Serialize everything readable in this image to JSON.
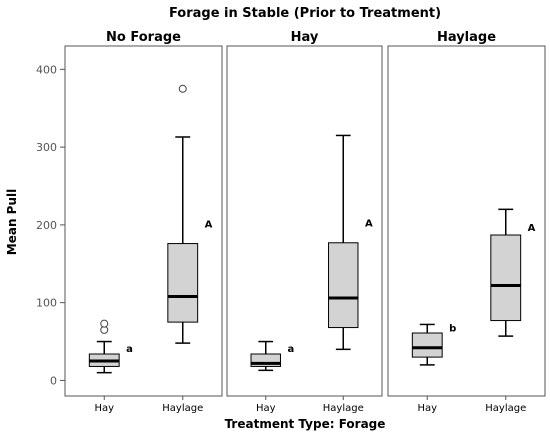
{
  "chart_data": {
    "type": "box",
    "title": "Forage in Stable (Prior to Treatment)",
    "xlabel": "Treatment Type: Forage",
    "ylabel": "Mean Pull",
    "ylim": [
      -20,
      430
    ],
    "yticks": [
      0,
      100,
      200,
      300,
      400
    ],
    "grid": false,
    "panels": [
      {
        "name": "No Forage",
        "categories": [
          "Hay",
          "Haylage"
        ],
        "boxes": [
          {
            "category": "Hay",
            "min": 10,
            "q1": 18,
            "median": 25,
            "q3": 34,
            "max": 50,
            "outliers": [
              65,
              73
            ],
            "letter": "a"
          },
          {
            "category": "Haylage",
            "min": 48,
            "q1": 75,
            "median": 108,
            "q3": 176,
            "max": 313,
            "outliers": [
              375
            ],
            "letter": "A"
          }
        ]
      },
      {
        "name": "Hay",
        "categories": [
          "Hay",
          "Haylage"
        ],
        "boxes": [
          {
            "category": "Hay",
            "min": 13,
            "q1": 18,
            "median": 22,
            "q3": 34,
            "max": 50,
            "outliers": [],
            "letter": "a"
          },
          {
            "category": "Haylage",
            "min": 40,
            "q1": 68,
            "median": 106,
            "q3": 177,
            "max": 315,
            "outliers": [],
            "letter": "A"
          }
        ]
      },
      {
        "name": "Haylage",
        "categories": [
          "Hay",
          "Haylage"
        ],
        "boxes": [
          {
            "category": "Hay",
            "min": 20,
            "q1": 30,
            "median": 42,
            "q3": 61,
            "max": 72,
            "outliers": [],
            "letter": "b"
          },
          {
            "category": "Haylage",
            "min": 57,
            "q1": 77,
            "median": 122,
            "q3": 187,
            "max": 220,
            "outliers": [],
            "letter": "A"
          }
        ]
      }
    ],
    "colors": {
      "box_fill": "#d3d3d3",
      "stroke": "#000000",
      "frame": "#555555"
    }
  }
}
